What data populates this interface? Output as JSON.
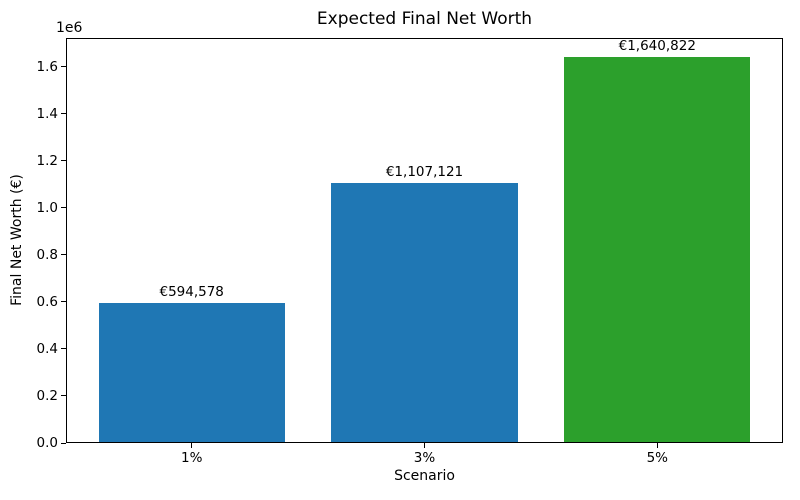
{
  "chart_data": {
    "type": "bar",
    "title": "Expected Final Net Worth",
    "xlabel": "Scenario",
    "ylabel": "Final Net Worth (€)",
    "y_offset_label": "1e6",
    "categories": [
      "1%",
      "3%",
      "5%"
    ],
    "values": [
      594578,
      1107121,
      1640822
    ],
    "value_labels": [
      "€594,578",
      "€1,107,121",
      "€1,640,822"
    ],
    "bar_colors": [
      "#1f77b4",
      "#1f77b4",
      "#2ca02c"
    ],
    "ylim": [
      0,
      1722863
    ],
    "yticks": [
      0,
      200000,
      400000,
      600000,
      800000,
      1000000,
      1200000,
      1400000,
      1600000
    ],
    "ytick_labels": [
      "0.0",
      "0.2",
      "0.4",
      "0.6",
      "0.8",
      "1.0",
      "1.2",
      "1.4",
      "1.6"
    ],
    "xlim": [
      -0.54,
      2.54
    ],
    "bar_width": 0.8,
    "grid": false,
    "legend": "none"
  }
}
